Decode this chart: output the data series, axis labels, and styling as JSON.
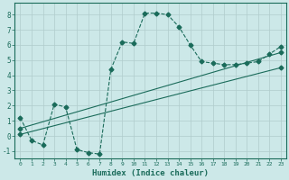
{
  "xlabel": "Humidex (Indice chaleur)",
  "bg_color": "#cce8e8",
  "line_color": "#1a6b5a",
  "grid_color": "#b0cccc",
  "xlim": [
    -0.5,
    23.5
  ],
  "ylim": [
    -1.5,
    8.8
  ],
  "yticks": [
    -1,
    0,
    1,
    2,
    3,
    4,
    5,
    6,
    7,
    8
  ],
  "xticks": [
    0,
    1,
    2,
    3,
    4,
    5,
    6,
    7,
    8,
    9,
    10,
    11,
    12,
    13,
    14,
    15,
    16,
    17,
    18,
    19,
    20,
    21,
    22,
    23
  ],
  "line1_x": [
    0,
    1,
    2,
    3,
    4,
    5,
    6,
    7,
    8,
    9,
    10,
    11,
    12,
    13,
    14,
    15,
    16,
    17,
    18,
    19,
    20,
    21,
    22,
    23
  ],
  "line1_y": [
    1.2,
    -0.3,
    -0.6,
    2.1,
    1.9,
    -0.9,
    -1.1,
    -1.2,
    4.4,
    6.2,
    6.1,
    8.1,
    8.1,
    8.0,
    7.2,
    6.0,
    4.9,
    4.8,
    4.7,
    4.7,
    4.8,
    4.9,
    5.4,
    5.9
  ],
  "line2_x": [
    0,
    23
  ],
  "line2_y": [
    0.5,
    5.5
  ],
  "line3_x": [
    0,
    23
  ],
  "line3_y": [
    0.1,
    4.5
  ]
}
